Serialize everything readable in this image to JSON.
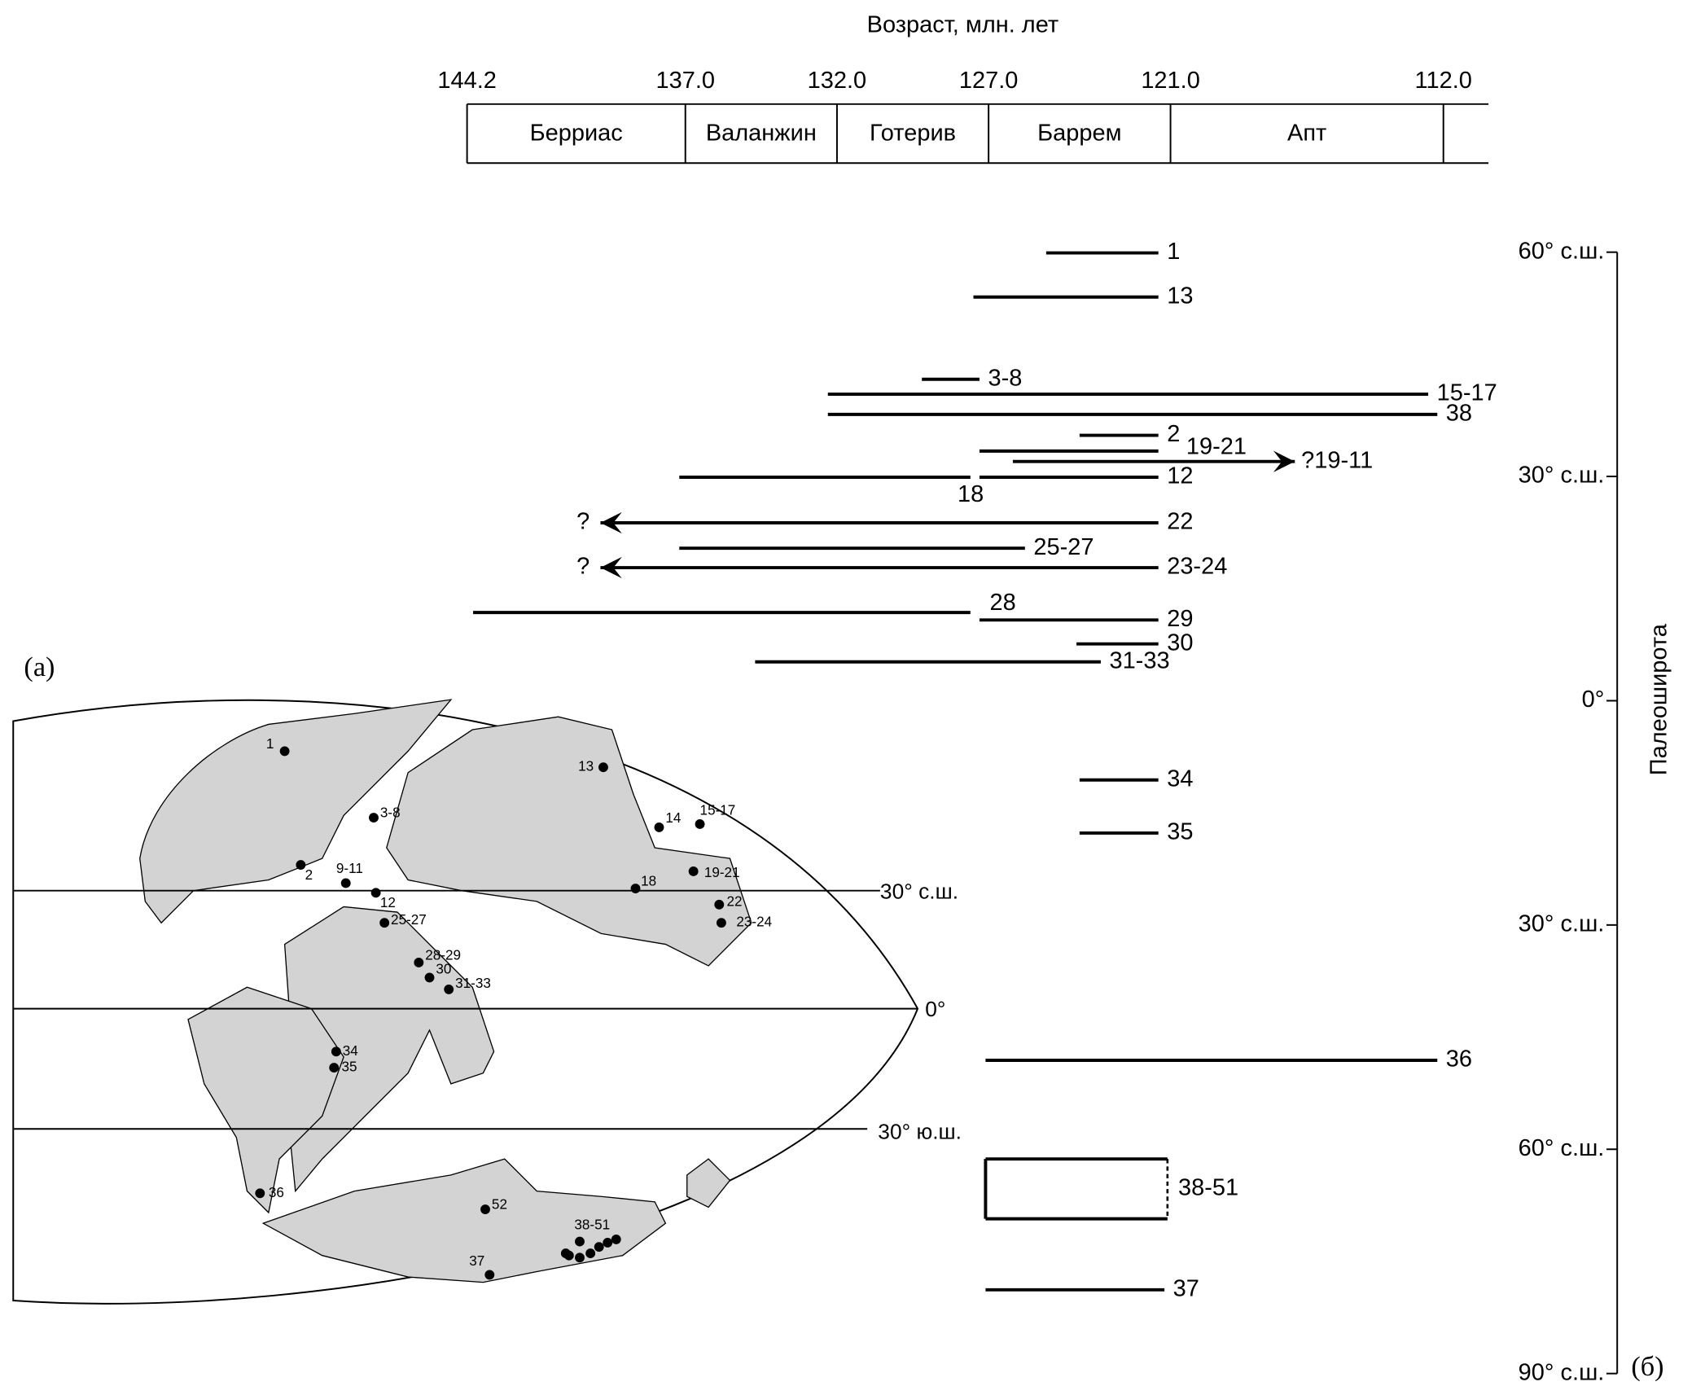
{
  "chart_data": {
    "type": "range",
    "title": "Возраст, млн. лет",
    "ylabel": "Палеоширота",
    "xlim": [
      144.2,
      112
    ],
    "xticks": [
      {
        "value": 144.2,
        "label": "144.2"
      },
      {
        "value": 137,
        "label": "137.0"
      },
      {
        "value": 132,
        "label": "132.0"
      },
      {
        "value": 127,
        "label": "127.0"
      },
      {
        "value": 121,
        "label": "121.0"
      },
      {
        "value": 112,
        "label": "112.0"
      }
    ],
    "stages": [
      {
        "name": "Берриас",
        "start": 144.2,
        "end": 137
      },
      {
        "name": "Валанжин",
        "start": 137,
        "end": 132
      },
      {
        "name": "Готерив",
        "start": 132,
        "end": 127
      },
      {
        "name": "Баррем",
        "start": 127,
        "end": 121
      },
      {
        "name": "Апт",
        "start": 121,
        "end": 112
      }
    ],
    "ylim": [
      -90,
      60
    ],
    "yticks": [
      {
        "value": 60,
        "label": "60° с.ш."
      },
      {
        "value": 30,
        "label": "30° с.ш."
      },
      {
        "value": 0,
        "label": "0°"
      },
      {
        "value": -30,
        "label": "30° с.ш."
      },
      {
        "value": -60,
        "label": "60° с.ш."
      },
      {
        "value": -90,
        "label": "90° с.ш."
      }
    ],
    "ranges": [
      {
        "label": "1",
        "start": 125.1,
        "end": 121.4,
        "lat": 59.9
      },
      {
        "label": "13",
        "start": 127.5,
        "end": 121.4,
        "lat": 54
      },
      {
        "label": "3-8",
        "start": 129.2,
        "end": 127.3,
        "lat": 43
      },
      {
        "label": "15-17",
        "start": 132.3,
        "end": 112.5,
        "lat": 41
      },
      {
        "label": "38",
        "start": 132.3,
        "end": 112.2,
        "lat": 38.3
      },
      {
        "label": "2",
        "start": 124,
        "end": 121.4,
        "lat": 35.5
      },
      {
        "label": "19-21",
        "start": 127.3,
        "end": 121.4,
        "lat": 33.4
      },
      {
        "label": "?19-11",
        "start": 126.2,
        "end": 116.9,
        "lat": 32,
        "arrow": "right"
      },
      {
        "label": "12",
        "start": 127.3,
        "end": 121.4,
        "lat": 29.9
      },
      {
        "label": "18",
        "start": 137.2,
        "end": 127.6,
        "lat": 29.9
      },
      {
        "label": "22",
        "start": 139.8,
        "end": 121.4,
        "lat": 23.8,
        "arrow": "left",
        "note": "?"
      },
      {
        "label": "25-27",
        "start": 137.2,
        "end": 125.8,
        "lat": 20.4
      },
      {
        "label": "23-24",
        "start": 139.8,
        "end": 121.4,
        "lat": 17.8,
        "arrow": "left",
        "note": "?"
      },
      {
        "label": "28",
        "start": 144,
        "end": 127.6,
        "lat": 11.8
      },
      {
        "label": "29",
        "start": 127.3,
        "end": 121.4,
        "lat": 10.8
      },
      {
        "label": "30",
        "start": 124.1,
        "end": 121.4,
        "lat": 7.6
      },
      {
        "label": "31-33",
        "start": 134.7,
        "end": 123.3,
        "lat": 5.2
      },
      {
        "label": "34",
        "start": 124,
        "end": 121.4,
        "lat": -10.6
      },
      {
        "label": "35",
        "start": 124,
        "end": 121.4,
        "lat": -17.7
      },
      {
        "label": "36",
        "start": 127.1,
        "end": 112.2,
        "lat": -48.1
      },
      {
        "label": "37",
        "start": 127.1,
        "end": 121.2,
        "lat": -78.8
      }
    ],
    "box": {
      "label": "38-51",
      "start": 127.1,
      "end": 121.1,
      "lat_top": -61.3,
      "lat_bottom": -69.3
    }
  },
  "map": {
    "panel": "(a)",
    "lat_lines": [
      "30° с.ш.",
      "0°",
      "30° ю.ш."
    ],
    "sites": [
      "1",
      "13",
      "3-8",
      "14",
      "15-17",
      "2",
      "9-11",
      "19-21",
      "18",
      "12",
      "22",
      "25-27",
      "23-24",
      "28-29",
      "30",
      "31-33",
      "34",
      "35",
      "36",
      "52",
      "37",
      "38-51"
    ]
  },
  "panel_b": "(б)"
}
